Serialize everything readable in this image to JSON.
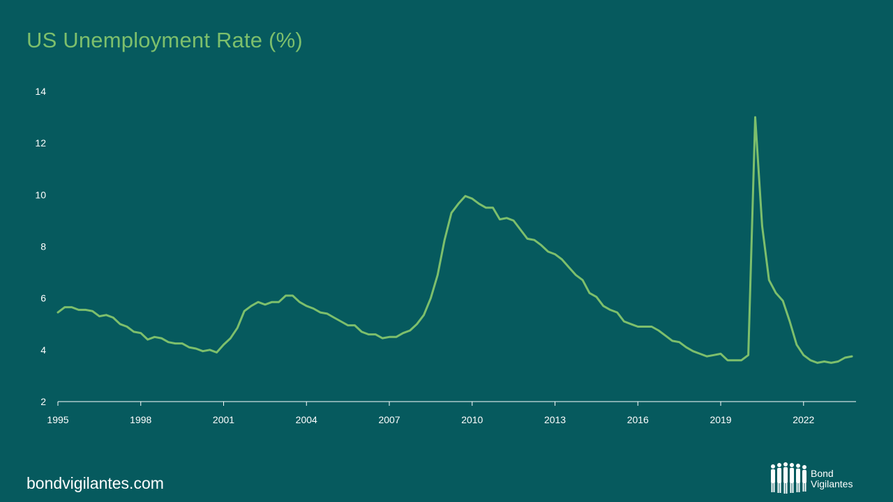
{
  "title": "US Unemployment Rate (%)",
  "footer": {
    "url": "bondvigilantes.com"
  },
  "logo": {
    "text_line1": "Bond",
    "text_line2": "Vigilantes"
  },
  "colors": {
    "background": "#065a5e",
    "accent": "#7dbf6c",
    "text": "#ffffff"
  },
  "chart_data": {
    "type": "line",
    "title": "US Unemployment Rate (%)",
    "xlabel": "",
    "ylabel": "",
    "xlim": [
      1995.0,
      2023.9
    ],
    "ylim": [
      2,
      14
    ],
    "y_ticks": [
      2,
      4,
      6,
      8,
      10,
      12,
      14
    ],
    "x_ticks": [
      1995,
      1998,
      2001,
      2004,
      2007,
      2010,
      2013,
      2016,
      2019,
      2022
    ],
    "grid": false,
    "legend": "none",
    "series": [
      {
        "color": "#7dbf6c",
        "x": [
          1995.0,
          1995.25,
          1995.5,
          1995.75,
          1996.0,
          1996.25,
          1996.5,
          1996.75,
          1997.0,
          1997.25,
          1997.5,
          1997.75,
          1998.0,
          1998.25,
          1998.5,
          1998.75,
          1999.0,
          1999.25,
          1999.5,
          1999.75,
          2000.0,
          2000.25,
          2000.5,
          2000.75,
          2001.0,
          2001.25,
          2001.5,
          2001.75,
          2002.0,
          2002.25,
          2002.5,
          2002.75,
          2003.0,
          2003.25,
          2003.5,
          2003.75,
          2004.0,
          2004.25,
          2004.5,
          2004.75,
          2005.0,
          2005.25,
          2005.5,
          2005.75,
          2006.0,
          2006.25,
          2006.5,
          2006.75,
          2007.0,
          2007.25,
          2007.5,
          2007.75,
          2008.0,
          2008.25,
          2008.5,
          2008.75,
          2009.0,
          2009.25,
          2009.5,
          2009.75,
          2010.0,
          2010.25,
          2010.5,
          2010.75,
          2011.0,
          2011.25,
          2011.5,
          2011.75,
          2012.0,
          2012.25,
          2012.5,
          2012.75,
          2013.0,
          2013.25,
          2013.5,
          2013.75,
          2014.0,
          2014.25,
          2014.5,
          2014.75,
          2015.0,
          2015.25,
          2015.5,
          2015.75,
          2016.0,
          2016.25,
          2016.5,
          2016.75,
          2017.0,
          2017.25,
          2017.5,
          2017.75,
          2018.0,
          2018.25,
          2018.5,
          2018.75,
          2019.0,
          2019.25,
          2019.5,
          2019.75,
          2020.0,
          2020.25,
          2020.5,
          2020.75,
          2021.0,
          2021.25,
          2021.5,
          2021.75,
          2022.0,
          2022.25,
          2022.5,
          2022.75,
          2023.0,
          2023.25,
          2023.5,
          2023.75
        ],
        "values": [
          5.45,
          5.65,
          5.65,
          5.55,
          5.55,
          5.5,
          5.3,
          5.35,
          5.25,
          5.0,
          4.9,
          4.7,
          4.65,
          4.4,
          4.5,
          4.45,
          4.3,
          4.25,
          4.25,
          4.1,
          4.05,
          3.95,
          4.0,
          3.9,
          4.2,
          4.45,
          4.85,
          5.5,
          5.7,
          5.85,
          5.75,
          5.85,
          5.85,
          6.1,
          6.1,
          5.85,
          5.7,
          5.6,
          5.45,
          5.4,
          5.25,
          5.1,
          4.95,
          4.95,
          4.7,
          4.6,
          4.6,
          4.45,
          4.5,
          4.5,
          4.65,
          4.75,
          5.0,
          5.35,
          6.0,
          6.9,
          8.25,
          9.3,
          9.65,
          9.95,
          9.85,
          9.65,
          9.5,
          9.5,
          9.05,
          9.1,
          9.0,
          8.65,
          8.3,
          8.25,
          8.05,
          7.8,
          7.7,
          7.5,
          7.2,
          6.9,
          6.7,
          6.2,
          6.05,
          5.7,
          5.55,
          5.45,
          5.1,
          5.0,
          4.9,
          4.9,
          4.9,
          4.75,
          4.55,
          4.35,
          4.3,
          4.1,
          3.95,
          3.85,
          3.75,
          3.8,
          3.85,
          3.6,
          3.6,
          3.6,
          3.8,
          13.0,
          8.8,
          6.7,
          6.2,
          5.9,
          5.1,
          4.2,
          3.8,
          3.6,
          3.5,
          3.55,
          3.5,
          3.55,
          3.7,
          3.75
        ]
      }
    ]
  }
}
